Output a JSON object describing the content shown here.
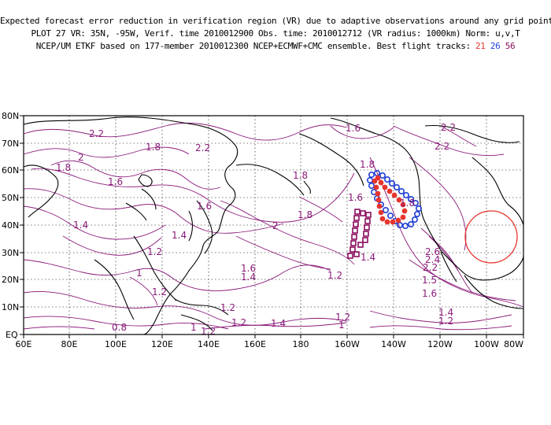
{
  "header": {
    "line1": "Expected forecast error reduction in verification region (VR) due to adaptive observations around any grid point.",
    "line2": "PLOT 27 VR: 35N, -95W, Verif. time 2010012900 Obs. time: 2010012712 (VR radius: 1000km) Norm: u,v,T",
    "line3_prefix": "NCEP/UM ETKF based on 177-member 2010012300 NCEP+ECMWF+CMC ensemble. Best flight tracks:",
    "track_21": "21",
    "track_26": "26",
    "track_56": "56"
  },
  "colors": {
    "contour": "#8b1a7a",
    "track_21": "#e8342c",
    "track_26": "#1f3fd6",
    "track_56": "#8b0d5e",
    "verification_circle": "#e8342c"
  },
  "axes": {
    "lat_labels": [
      "80N",
      "70N",
      "60N",
      "50N",
      "40N",
      "30N",
      "20N",
      "10N",
      "EQ"
    ],
    "lon_labels": [
      "60E",
      "80E",
      "100E",
      "120E",
      "140E",
      "160E",
      "180",
      "160W",
      "140W",
      "120W",
      "100W",
      "80W"
    ]
  },
  "contour_labels": [
    {
      "text": "2.2"
    },
    {
      "text": "1.8"
    },
    {
      "text": "2.2"
    },
    {
      "text": "1.6"
    },
    {
      "text": "2"
    },
    {
      "text": "1.8"
    },
    {
      "text": "1.6"
    },
    {
      "text": "1.4"
    },
    {
      "text": "1.6"
    },
    {
      "text": "1.4"
    },
    {
      "text": "1.2"
    },
    {
      "text": "2"
    },
    {
      "text": "1.8"
    },
    {
      "text": "1.8"
    },
    {
      "text": "1.6"
    },
    {
      "text": "1.8"
    },
    {
      "text": "2.2"
    },
    {
      "text": "2.2"
    },
    {
      "text": "2.6"
    },
    {
      "text": "2.4"
    },
    {
      "text": "2.2"
    },
    {
      "text": "1.6"
    },
    {
      "text": "1.4"
    },
    {
      "text": "1.2"
    },
    {
      "text": "1"
    },
    {
      "text": "1.2"
    },
    {
      "text": "1.2"
    },
    {
      "text": "1.2"
    },
    {
      "text": "1.4"
    },
    {
      "text": "1.4"
    },
    {
      "text": "1.6"
    },
    {
      "text": "1.4"
    },
    {
      "text": "1.2"
    },
    {
      "text": "1"
    },
    {
      "text": "0.8"
    },
    {
      "text": "1"
    },
    {
      "text": "1.2"
    },
    {
      "text": "1.8"
    },
    {
      "text": "1.5"
    },
    {
      "text": "1.2"
    }
  ]
}
